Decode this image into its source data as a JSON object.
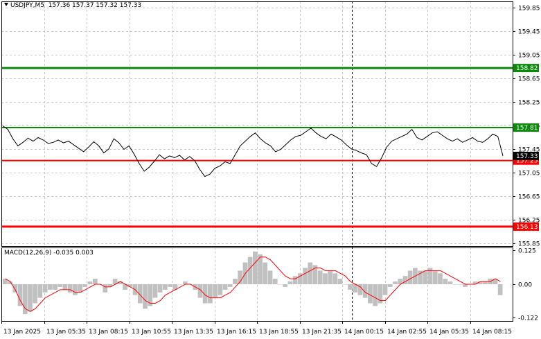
{
  "symbol_label": "USDJPY,M5",
  "ohlc_label": "157.36 157.37 157.32 157.33",
  "macd_label": "MACD(12,26,9) -0.035 0.003",
  "price_axis": {
    "min": 155.8,
    "max": 159.95,
    "ticks": [
      "159.85",
      "159.45",
      "159.05",
      "158.65",
      "158.25",
      "157.85",
      "157.45",
      "157.05",
      "156.65",
      "156.25",
      "155.85"
    ]
  },
  "macd_axis": {
    "min": -0.135,
    "max": 0.135,
    "ticks": [
      "0.125",
      "0.00",
      "-0.122"
    ]
  },
  "time_labels": [
    "13 Jan 2025",
    "13 Jan 05:35",
    "13 Jan 08:15",
    "13 Jan 10:55",
    "13 Jan 13:35",
    "13 Jan 16:15",
    "13 Jan 18:55",
    "13 Jan 21:35",
    "14 Jan 00:15",
    "14 Jan 02:55",
    "14 Jan 05:35",
    "14 Jan 08:15"
  ],
  "levels": [
    {
      "value": 158.82,
      "label": "158.82",
      "color": "#0a8a0a",
      "weight": 3
    },
    {
      "value": 157.81,
      "label": "157.81",
      "color": "#0a8a0a",
      "weight": 2
    },
    {
      "value": 157.25,
      "label": "157.25",
      "color": "#ff0000",
      "weight": 2
    },
    {
      "value": 156.13,
      "label": "156.13",
      "color": "#ff0000",
      "weight": 3
    }
  ],
  "current_price": {
    "value": 157.33,
    "label": "157.33"
  },
  "colors": {
    "price_line": "#000000",
    "grid": "#c8c8c8",
    "macd_hist": "#c0c0c0",
    "signal": "#ff0000"
  },
  "chart_data": {
    "type": "line",
    "price_series": [
      157.84,
      157.78,
      157.62,
      157.5,
      157.56,
      157.63,
      157.58,
      157.64,
      157.6,
      157.54,
      157.56,
      157.6,
      157.55,
      157.58,
      157.52,
      157.46,
      157.4,
      157.48,
      157.57,
      157.5,
      157.38,
      157.45,
      157.62,
      157.55,
      157.44,
      157.5,
      157.36,
      157.2,
      157.07,
      157.14,
      157.24,
      157.35,
      157.28,
      157.33,
      157.3,
      157.34,
      157.26,
      157.32,
      157.25,
      157.1,
      156.98,
      157.02,
      157.12,
      157.16,
      157.23,
      157.2,
      157.35,
      157.5,
      157.58,
      157.66,
      157.72,
      157.62,
      157.55,
      157.5,
      157.4,
      157.44,
      157.52,
      157.6,
      157.66,
      157.68,
      157.74,
      157.8,
      157.72,
      157.66,
      157.62,
      157.7,
      157.65,
      157.6,
      157.52,
      157.45,
      157.42,
      157.38,
      157.35,
      157.2,
      157.15,
      157.3,
      157.48,
      157.58,
      157.62,
      157.66,
      157.7,
      157.78,
      157.64,
      157.6,
      157.66,
      157.72,
      157.74,
      157.68,
      157.62,
      157.58,
      157.62,
      157.56,
      157.6,
      157.64,
      157.58,
      157.56,
      157.62,
      157.7,
      157.66,
      157.33
    ],
    "macd_histogram": [
      0.02,
      0.01,
      -0.03,
      -0.08,
      -0.11,
      -0.1,
      -0.07,
      -0.05,
      -0.03,
      -0.02,
      -0.02,
      -0.01,
      -0.02,
      -0.03,
      -0.04,
      -0.03,
      -0.01,
      0.01,
      0.02,
      0.0,
      -0.03,
      -0.01,
      0.02,
      0.01,
      -0.02,
      -0.01,
      -0.04,
      -0.07,
      -0.09,
      -0.08,
      -0.05,
      -0.03,
      -0.02,
      -0.01,
      -0.02,
      0.0,
      0.01,
      0.0,
      -0.02,
      -0.05,
      -0.07,
      -0.07,
      -0.05,
      -0.04,
      -0.02,
      -0.01,
      0.02,
      0.05,
      0.08,
      0.1,
      0.12,
      0.11,
      0.08,
      0.05,
      0.02,
      0.0,
      -0.01,
      0.01,
      0.03,
      0.04,
      0.06,
      0.08,
      0.07,
      0.05,
      0.04,
      0.05,
      0.04,
      0.02,
      0.0,
      -0.02,
      -0.03,
      -0.04,
      -0.05,
      -0.07,
      -0.08,
      -0.07,
      -0.04,
      -0.01,
      0.01,
      0.02,
      0.03,
      0.05,
      0.06,
      0.05,
      0.05,
      0.06,
      0.05,
      0.04,
      0.02,
      0.01,
      0.0,
      0.0,
      -0.01,
      0.0,
      0.01,
      0.01,
      0.01,
      0.02,
      0.02,
      -0.04
    ],
    "macd_signal": [
      0.02,
      0.01,
      -0.02,
      -0.06,
      -0.09,
      -0.1,
      -0.09,
      -0.07,
      -0.05,
      -0.04,
      -0.03,
      -0.02,
      -0.02,
      -0.02,
      -0.03,
      -0.03,
      -0.02,
      -0.01,
      0.0,
      0.0,
      -0.01,
      -0.01,
      0.0,
      0.01,
      0.0,
      -0.01,
      -0.02,
      -0.04,
      -0.06,
      -0.07,
      -0.07,
      -0.06,
      -0.04,
      -0.03,
      -0.02,
      -0.01,
      0.0,
      0.0,
      -0.01,
      -0.02,
      -0.04,
      -0.05,
      -0.05,
      -0.05,
      -0.04,
      -0.03,
      -0.01,
      0.01,
      0.04,
      0.06,
      0.08,
      0.1,
      0.1,
      0.09,
      0.07,
      0.05,
      0.03,
      0.02,
      0.02,
      0.03,
      0.04,
      0.05,
      0.06,
      0.06,
      0.05,
      0.05,
      0.05,
      0.04,
      0.03,
      0.01,
      0.0,
      -0.01,
      -0.03,
      -0.04,
      -0.05,
      -0.06,
      -0.06,
      -0.04,
      -0.02,
      0.0,
      0.01,
      0.02,
      0.03,
      0.04,
      0.05,
      0.05,
      0.05,
      0.05,
      0.04,
      0.03,
      0.02,
      0.01,
      0.0,
      0.0,
      0.0,
      0.01,
      0.01,
      0.01,
      0.02,
      0.01
    ]
  }
}
